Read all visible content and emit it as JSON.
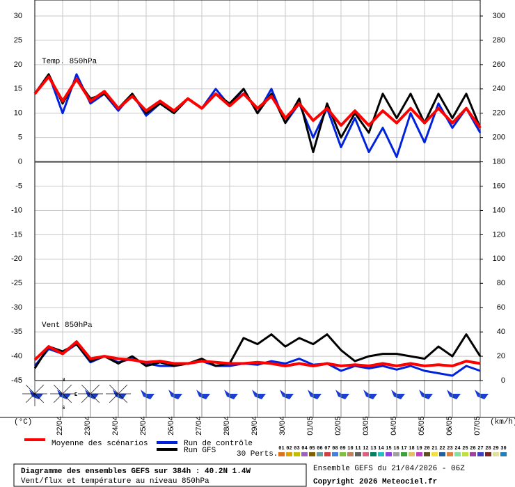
{
  "chart_data": [
    {
      "type": "line",
      "panel_label": "Temp. 850hPa",
      "ylabel": "(°C)",
      "x": [
        0,
        12,
        24,
        36,
        48,
        60,
        72,
        84,
        96,
        108,
        120,
        132,
        144,
        156,
        168,
        180,
        192,
        204,
        216,
        228,
        240,
        252,
        264,
        276,
        288,
        300,
        312,
        324,
        336,
        348,
        360,
        372,
        384
      ],
      "xlim": [
        0,
        384
      ],
      "xticks": [
        {
          "value": 24,
          "label": "22/04"
        },
        {
          "value": 48,
          "label": "23/04"
        },
        {
          "value": 72,
          "label": "24/04"
        },
        {
          "value": 96,
          "label": "25/04"
        },
        {
          "value": 120,
          "label": "26/04"
        },
        {
          "value": 144,
          "label": "27/04"
        },
        {
          "value": 168,
          "label": "28/04"
        },
        {
          "value": 192,
          "label": "29/04"
        },
        {
          "value": 216,
          "label": "30/04"
        },
        {
          "value": 240,
          "label": "01/05"
        },
        {
          "value": 264,
          "label": "02/05"
        },
        {
          "value": 288,
          "label": "03/05"
        },
        {
          "value": 312,
          "label": "04/05"
        },
        {
          "value": 336,
          "label": "05/05"
        },
        {
          "value": 360,
          "label": "06/05"
        },
        {
          "value": 384,
          "label": "07/05"
        }
      ],
      "ylim": [
        -45,
        30
      ],
      "yticks": [
        30,
        25,
        20,
        15,
        10,
        5,
        0,
        -5,
        -10,
        -15,
        -20,
        -25,
        -30,
        -35,
        -40,
        -45
      ],
      "grid": true,
      "series": [
        {
          "name": "Run de contrôle",
          "color": "#0022dd",
          "values": [
            14,
            18,
            10,
            18,
            12,
            14,
            10.5,
            14,
            9.5,
            12,
            10,
            13,
            11,
            15,
            11.5,
            15,
            10,
            15,
            8,
            12,
            5,
            11,
            3,
            9,
            2,
            7,
            1,
            10,
            4,
            12,
            7,
            11,
            6
          ]
        },
        {
          "name": "Run GFS",
          "color": "#000000",
          "values": [
            14,
            18,
            12,
            17,
            13,
            14,
            11,
            14,
            10,
            12,
            10,
            13,
            11,
            14,
            12,
            15,
            10,
            14,
            8,
            13,
            2,
            12,
            5,
            10,
            6,
            14,
            9,
            14,
            8,
            14,
            9,
            14,
            7
          ]
        },
        {
          "name": "Moyenne des scénarios",
          "color": "#ff0000",
          "values": [
            14,
            17.5,
            12.5,
            17,
            12.5,
            14.5,
            11,
            13.5,
            10.5,
            12.5,
            10.5,
            13,
            11,
            14,
            11.5,
            14,
            11,
            13.5,
            9,
            12,
            8.5,
            11,
            7.5,
            10.5,
            7.5,
            10.5,
            8,
            11,
            8,
            11,
            8,
            11,
            7
          ]
        }
      ]
    },
    {
      "type": "line",
      "panel_label": "Vent 850hPa",
      "y2label": "(km/h)",
      "x": [
        0,
        12,
        24,
        36,
        48,
        60,
        72,
        84,
        96,
        108,
        120,
        132,
        144,
        156,
        168,
        180,
        192,
        204,
        216,
        228,
        240,
        252,
        264,
        276,
        288,
        300,
        312,
        324,
        336,
        348,
        360,
        372,
        384
      ],
      "y2lim": [
        0,
        300
      ],
      "y2ticks": [
        300,
        280,
        260,
        240,
        220,
        200,
        180,
        160,
        140,
        120,
        100,
        80,
        60,
        40,
        20,
        0
      ],
      "series": [
        {
          "color": "#0022dd",
          "axis": "y2",
          "values": [
            12,
            26,
            22,
            30,
            15,
            20,
            15,
            18,
            14,
            12,
            12,
            14,
            16,
            12,
            12,
            14,
            13,
            16,
            14,
            18,
            13,
            14,
            8,
            12,
            10,
            12,
            9,
            12,
            8,
            6,
            4,
            12,
            8
          ]
        },
        {
          "color": "#000000",
          "axis": "y2",
          "values": [
            10,
            28,
            24,
            30,
            16,
            20,
            14,
            20,
            12,
            15,
            12,
            14,
            18,
            12,
            14,
            35,
            30,
            38,
            28,
            35,
            30,
            38,
            25,
            16,
            20,
            22,
            22,
            20,
            18,
            28,
            20,
            38,
            20
          ]
        },
        {
          "color": "#ff0000",
          "axis": "y2",
          "values": [
            17,
            28,
            22,
            32,
            18,
            20,
            18,
            17,
            15,
            16,
            14,
            14,
            16,
            15,
            14,
            14,
            15,
            14,
            12,
            14,
            12,
            14,
            12,
            13,
            12,
            14,
            12,
            14,
            12,
            13,
            12,
            16,
            14
          ]
        }
      ]
    }
  ],
  "compass": [
    "N",
    "S",
    "E"
  ],
  "perturbations": {
    "label": "30 Perts.",
    "items": [
      {
        "name": "01",
        "color": "#e07020"
      },
      {
        "name": "02",
        "color": "#e0a000"
      },
      {
        "name": "03",
        "color": "#c0c000"
      },
      {
        "name": "04",
        "color": "#a060c0"
      },
      {
        "name": "05",
        "color": "#806000"
      },
      {
        "name": "06",
        "color": "#60a0a0"
      },
      {
        "name": "07",
        "color": "#d04040"
      },
      {
        "name": "08",
        "color": "#4080e0"
      },
      {
        "name": "09",
        "color": "#80c040"
      },
      {
        "name": "10",
        "color": "#c08060"
      },
      {
        "name": "11",
        "color": "#606060"
      },
      {
        "name": "12",
        "color": "#e06080"
      },
      {
        "name": "13",
        "color": "#008060"
      },
      {
        "name": "14",
        "color": "#20c0c0"
      },
      {
        "name": "15",
        "color": "#9040e0"
      },
      {
        "name": "16",
        "color": "#a0a0a0"
      },
      {
        "name": "17",
        "color": "#40a040"
      },
      {
        "name": "18",
        "color": "#e0c060"
      },
      {
        "name": "19",
        "color": "#c040c0"
      },
      {
        "name": "20",
        "color": "#605020"
      },
      {
        "name": "21",
        "color": "#f0e040"
      },
      {
        "name": "22",
        "color": "#2060a0"
      },
      {
        "name": "23",
        "color": "#e08040"
      },
      {
        "name": "24",
        "color": "#80e0a0"
      },
      {
        "name": "25",
        "color": "#c0e040"
      },
      {
        "name": "26",
        "color": "#a040a0"
      },
      {
        "name": "27",
        "color": "#4040c0"
      },
      {
        "name": "28",
        "color": "#802020"
      },
      {
        "name": "29",
        "color": "#e0e0a0"
      },
      {
        "name": "30",
        "color": "#2080c0"
      }
    ]
  },
  "footer": {
    "title": "Diagramme des ensembles GEFS sur 384h : 40.2N 1.4W",
    "subtitle": "Vent/flux et température au niveau 850hPa",
    "run": "Ensemble GEFS du 21/04/2026 - 06Z",
    "copyright": "Copyright 2026 Meteociel.fr"
  }
}
